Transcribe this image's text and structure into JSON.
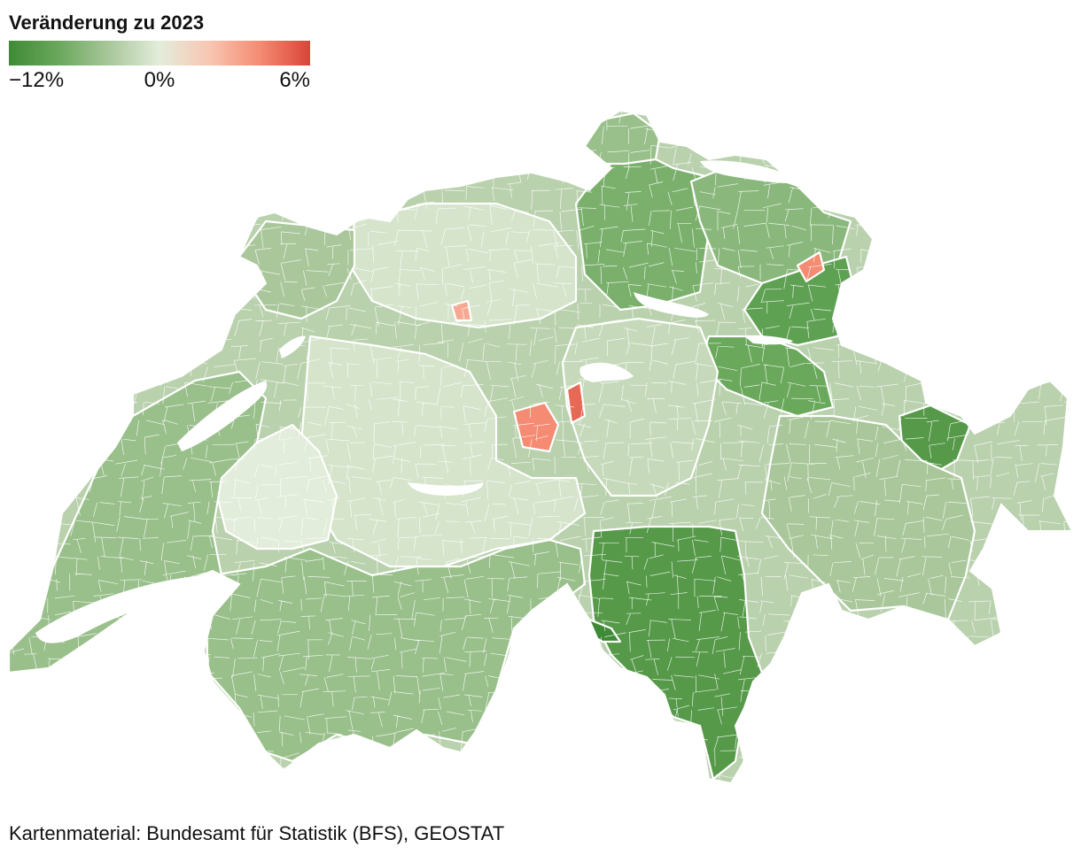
{
  "legend": {
    "title": "Veränderung zu 2023",
    "min_label": "−12%",
    "mid_label": "0%",
    "max_label": "6%",
    "min_value": -12,
    "mid_value": 0,
    "max_value": 6,
    "colors": [
      "#3f8a36",
      "#6aa85c",
      "#a9c79b",
      "#e3eddb",
      "#f8c6b2",
      "#f48b72",
      "#d94538"
    ]
  },
  "map": {
    "land_color": "#b9d1ad",
    "border_color": "#ffffff",
    "lake_color": "#ffffff",
    "regions": [
      {
        "name": "zurich-thurgau",
        "value": -7
      },
      {
        "name": "schaffhausen",
        "value": -5
      },
      {
        "name": "st-gallen-appenzell",
        "value": -6
      },
      {
        "name": "rheintal",
        "value": -9
      },
      {
        "name": "glarus",
        "value": -8
      },
      {
        "name": "lower-engadin",
        "value": -10
      },
      {
        "name": "albula",
        "value": -11
      },
      {
        "name": "graubuenden",
        "value": -4
      },
      {
        "name": "ticino",
        "value": -10
      },
      {
        "name": "ticino-west",
        "value": -12
      },
      {
        "name": "valais",
        "value": -5
      },
      {
        "name": "central-switzerland",
        "value": -2
      },
      {
        "name": "bern",
        "value": -1
      },
      {
        "name": "fribourg-west",
        "value": 0
      },
      {
        "name": "aargau-solothurn",
        "value": -1
      },
      {
        "name": "basel-jura",
        "value": -4
      },
      {
        "name": "vaud-geneva",
        "value": -5
      },
      {
        "name": "lucerne-hotspot",
        "value": 4
      },
      {
        "name": "nidwalden-hotspot",
        "value": 5
      },
      {
        "name": "bern-hotspot",
        "value": 3
      },
      {
        "name": "st-gallen-hotspot",
        "value": 4
      }
    ]
  },
  "source": "Kartenmaterial: Bundesamt für Statistik (BFS), GEOSTAT"
}
